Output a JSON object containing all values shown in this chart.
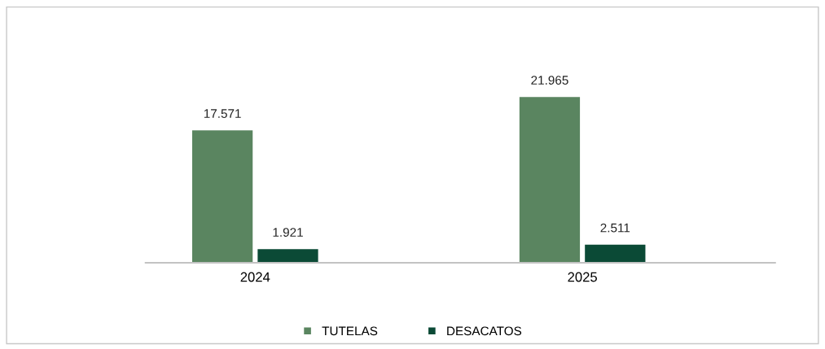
{
  "chart_data": {
    "type": "bar",
    "categories": [
      "2024",
      "2025"
    ],
    "series": [
      {
        "name": "TUTELAS",
        "color": "#5a8560",
        "values": [
          17571,
          21965
        ],
        "value_labels": [
          "17.571",
          "21.965"
        ]
      },
      {
        "name": "DESACATOS",
        "color": "#0b4a36",
        "values": [
          1921,
          2511
        ],
        "value_labels": [
          "1.921",
          "2.511"
        ]
      }
    ],
    "grid": false,
    "legend": "bottom"
  }
}
